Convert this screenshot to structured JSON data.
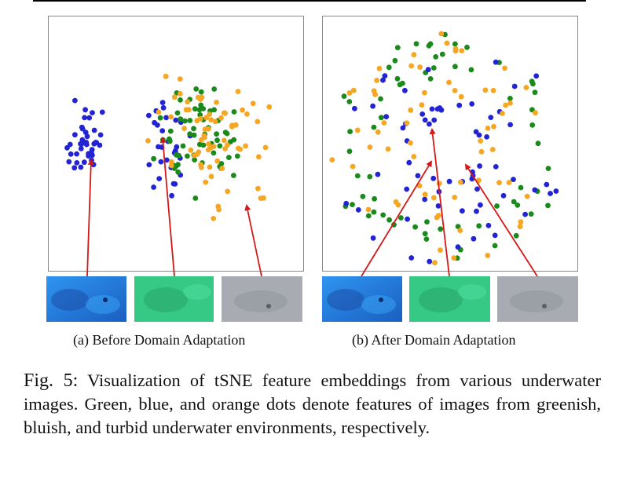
{
  "colors": {
    "green": "#1a8a1a",
    "blue": "#2323d6",
    "orange": "#f5a623",
    "arrow": "#d41818"
  },
  "figure": {
    "subcaption_a": "(a) Before Domain Adaptation",
    "subcaption_b": "(b) After Domain Adaptation",
    "label": "Fig. 5:",
    "caption": "Visualization of tSNE feature embeddings from various underwater images. Green, blue, and orange dots denote features of images from greenish, bluish, and turbid underwater environments, respectively."
  },
  "thumbnails": [
    {
      "name": "bluish-underwater-image",
      "color": "#2a7bd8"
    },
    {
      "name": "greenish-underwater-image",
      "color": "#33cc88"
    },
    {
      "name": "turbid-underwater-image",
      "color": "#a9adb3"
    }
  ]
}
